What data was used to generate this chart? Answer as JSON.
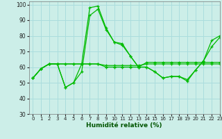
{
  "xlabel": "Humidité relative (%)",
  "background_color": "#cceee8",
  "grid_color": "#aadddd",
  "line_color": "#00bb00",
  "xlim": [
    -0.5,
    23
  ],
  "ylim": [
    30,
    102
  ],
  "xticks": [
    0,
    1,
    2,
    3,
    4,
    5,
    6,
    7,
    8,
    9,
    10,
    11,
    12,
    13,
    14,
    15,
    16,
    17,
    18,
    19,
    20,
    21,
    22,
    23
  ],
  "yticks": [
    30,
    40,
    50,
    60,
    70,
    80,
    90,
    100
  ],
  "series": [
    [
      53,
      59,
      62,
      62,
      47,
      50,
      62,
      98,
      99,
      85,
      76,
      75,
      67,
      60,
      60,
      57,
      53,
      54,
      54,
      52,
      58,
      64,
      77,
      80
    ],
    [
      53,
      59,
      62,
      62,
      47,
      50,
      57,
      93,
      97,
      84,
      76,
      74,
      67,
      60,
      60,
      57,
      53,
      54,
      54,
      51,
      58,
      64,
      73,
      79
    ],
    [
      53,
      59,
      62,
      62,
      62,
      62,
      62,
      62,
      62,
      60,
      60,
      60,
      60,
      60,
      63,
      63,
      63,
      63,
      63,
      63,
      63,
      63,
      63,
      63
    ],
    [
      53,
      59,
      62,
      62,
      62,
      62,
      62,
      62,
      62,
      61,
      61,
      61,
      61,
      61,
      62,
      62,
      62,
      62,
      62,
      62,
      62,
      62,
      62,
      62
    ]
  ]
}
